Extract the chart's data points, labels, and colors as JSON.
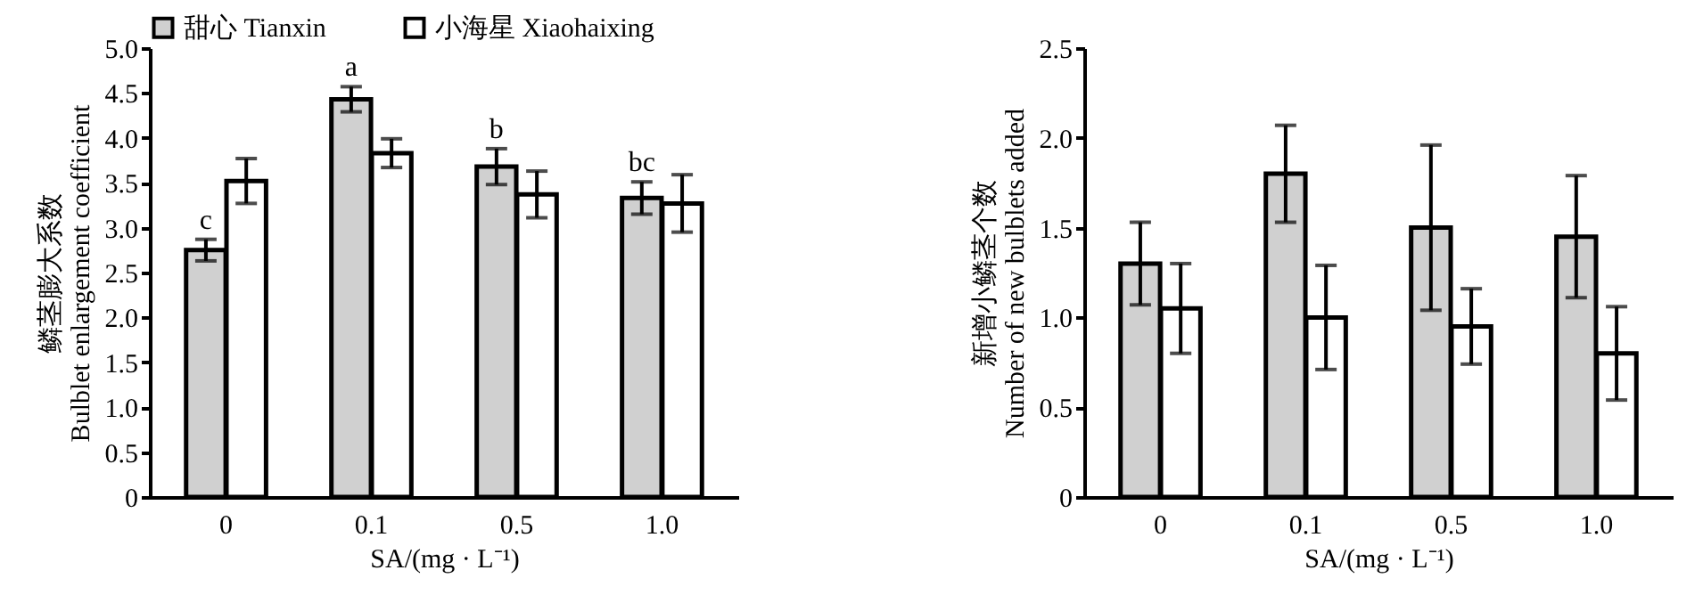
{
  "chart_data": [
    {
      "type": "bar",
      "categories": [
        "0",
        "0.1",
        "0.5",
        "1.0"
      ],
      "xlabel": "SA/(mg · L⁻¹)",
      "ylabel": "鳞茎膨大系数\nBulblet enlargement coefficient",
      "ylim": [
        0,
        5
      ],
      "yticks": [
        0,
        0.5,
        {
          "value": 1,
          "label": "1.0"
        },
        1.5,
        {
          "value": 2,
          "label": "2.0"
        },
        2.5,
        {
          "value": 3,
          "label": "3.0"
        },
        3.5,
        {
          "value": 4,
          "label": "4.0"
        },
        4.5,
        {
          "value": 5,
          "label": "5.0"
        }
      ],
      "grid": false,
      "legend": "top",
      "series": [
        {
          "name": "甜心 Tianxin",
          "color": "#d0d0d0",
          "values": [
            2.75,
            4.43,
            3.68,
            3.33
          ],
          "errors": [
            0.12,
            0.14,
            0.2,
            0.18
          ]
        },
        {
          "name": "小海星 Xiaohaixing",
          "color": "#ffffff",
          "values": [
            3.52,
            3.83,
            3.37,
            3.27
          ],
          "errors": [
            0.25,
            0.16,
            0.26,
            0.32
          ]
        }
      ],
      "annotations": [
        {
          "text": "c",
          "x": "0",
          "y": 2.75
        },
        {
          "text": "a",
          "x": "0.1",
          "y": 4.43
        },
        {
          "text": "b",
          "x": "0.5",
          "y": 3.68
        },
        {
          "text": "bc",
          "x": "1.0",
          "y": 3.33
        }
      ]
    },
    {
      "type": "bar",
      "categories": [
        "0",
        "0.1",
        "0.5",
        "1.0"
      ],
      "xlabel": "SA/(mg · L⁻¹)",
      "ylabel": "新增小鳞茎个数\nNumber of new bulblets added",
      "ylim": [
        0,
        2.5
      ],
      "yticks": [
        0,
        0.5,
        {
          "value": 1,
          "label": "1.0"
        },
        1.5,
        {
          "value": 2,
          "label": "2.0"
        },
        2.5
      ],
      "grid": false,
      "series": [
        {
          "color": "#d0d0d0",
          "values": [
            1.3,
            1.8,
            1.5,
            1.45
          ],
          "errors": [
            0.23,
            0.27,
            0.46,
            0.34
          ]
        },
        {
          "color": "#ffffff",
          "values": [
            1.05,
            1.0,
            0.95,
            0.8
          ],
          "errors": [
            0.25,
            0.29,
            0.21,
            0.26
          ]
        }
      ]
    }
  ]
}
